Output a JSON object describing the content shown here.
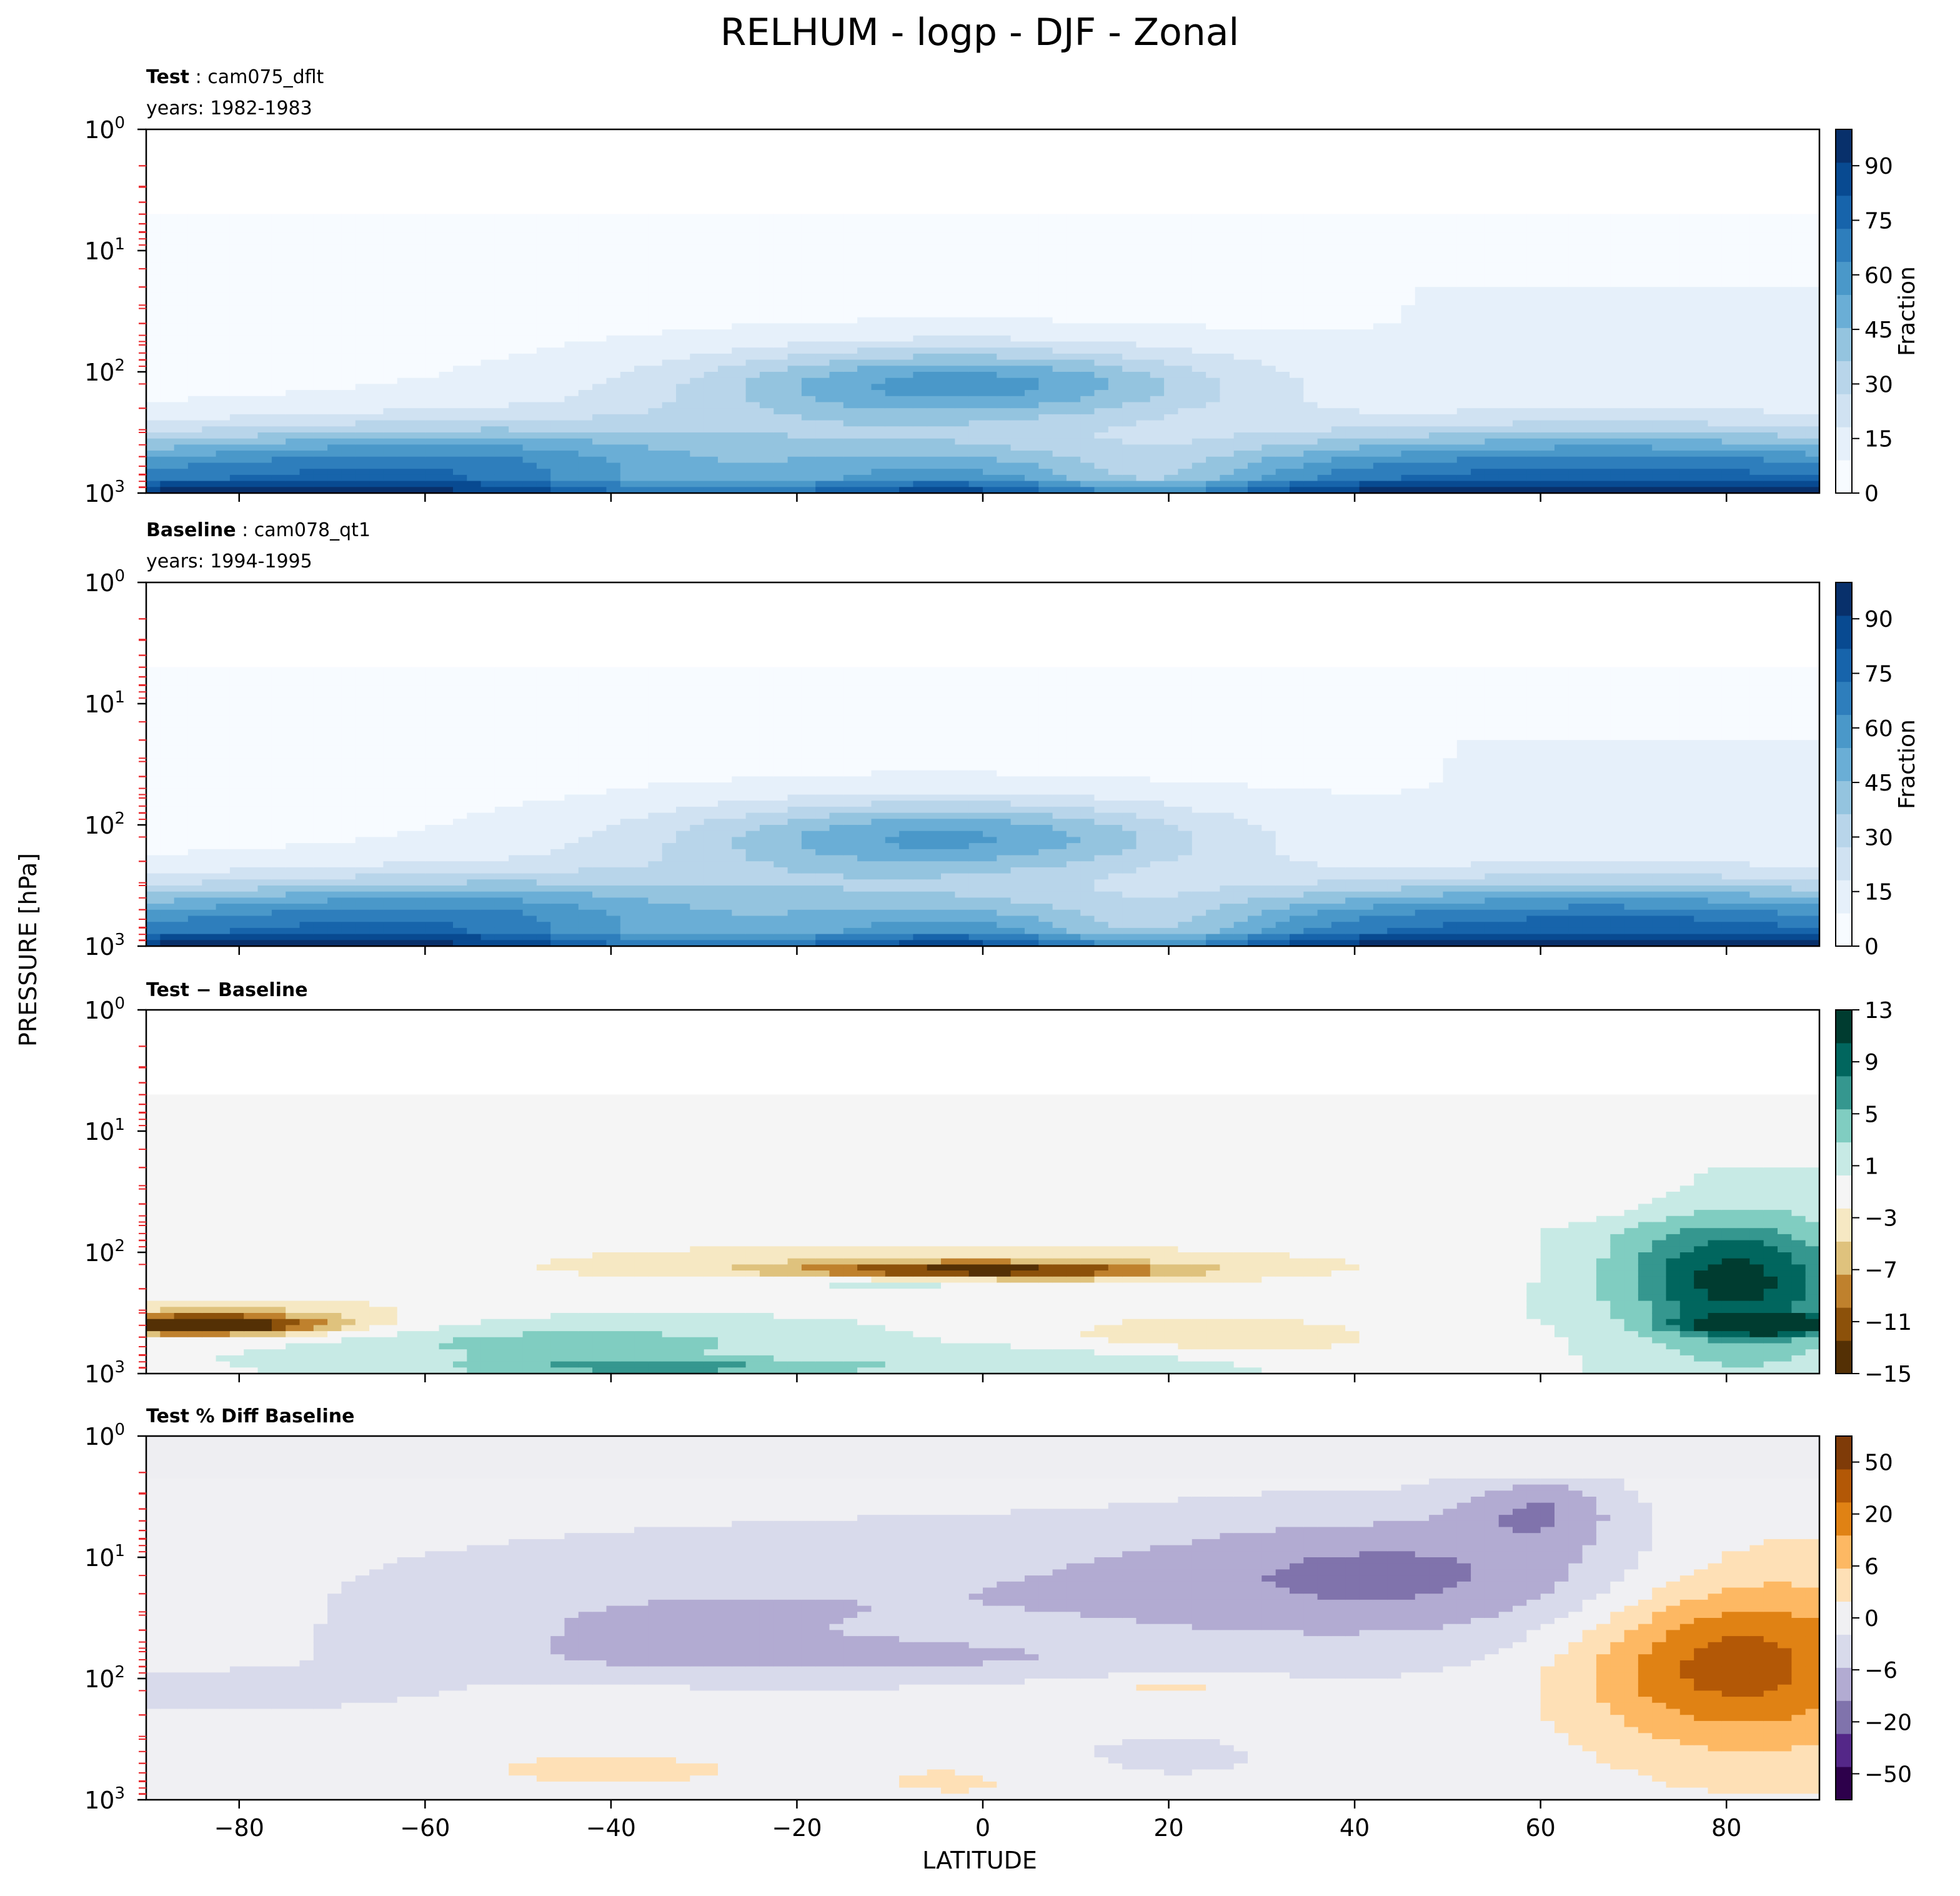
{
  "title": "RELHUM - logp - DJF - Zonal",
  "shared_ylabel": "PRESSURE [hPa]",
  "shared_xlabel": "LATITUDE",
  "chart_data": [
    {
      "type": "heatmap",
      "panel_label_bold": "Test",
      "panel_label_rest": ": cam075_dflt",
      "years": "years: 1982-1983",
      "colorbar_label": "Fraction",
      "colorbar_ticks": [
        "0",
        "15",
        "30",
        "45",
        "60",
        "75",
        "90"
      ],
      "colorbar_range": [
        0,
        100
      ],
      "colors": [
        "#f7fbff",
        "#e6f0fa",
        "#d0e2f2",
        "#b8d5ea",
        "#94c4df",
        "#6aaed6",
        "#4a98c9",
        "#2e7ebc",
        "#1764ab",
        "#084a91",
        "#08306b"
      ],
      "x_range": [
        -90,
        90
      ],
      "y_range_hpa": [
        1,
        1000
      ],
      "y_log": true,
      "y_ticklabels": [
        "10^0",
        "10^1",
        "10^2",
        "10^3"
      ],
      "x_ticklabels": [
        "−80",
        "−60",
        "−40",
        "−20",
        "0",
        "20",
        "40",
        "60",
        "80"
      ],
      "cutoff_hpa": 5,
      "field": "rh_test"
    },
    {
      "type": "heatmap",
      "panel_label_bold": "Baseline",
      "panel_label_rest": ": cam078_qt1",
      "years": "years: 1994-1995",
      "colorbar_label": "Fraction",
      "colorbar_ticks": [
        "0",
        "15",
        "30",
        "45",
        "60",
        "75",
        "90"
      ],
      "colorbar_range": [
        0,
        100
      ],
      "colors": [
        "#f7fbff",
        "#e6f0fa",
        "#d0e2f2",
        "#b8d5ea",
        "#94c4df",
        "#6aaed6",
        "#4a98c9",
        "#2e7ebc",
        "#1764ab",
        "#084a91",
        "#08306b"
      ],
      "x_range": [
        -90,
        90
      ],
      "y_range_hpa": [
        1,
        1000
      ],
      "y_log": true,
      "y_ticklabels": [
        "10^0",
        "10^1",
        "10^2",
        "10^3"
      ],
      "x_ticklabels": [
        "−80",
        "−60",
        "−40",
        "−20",
        "0",
        "20",
        "40",
        "60",
        "80"
      ],
      "cutoff_hpa": 5,
      "field": "rh_base"
    },
    {
      "type": "heatmap",
      "panel_label_bold": "Test − Baseline",
      "panel_label_rest": "",
      "years": "",
      "colorbar_label": "",
      "colorbar_ticks": [
        "−15",
        "−11",
        "−7",
        "−3",
        "1",
        "5",
        "9",
        "13"
      ],
      "colorbar_range": [
        -15,
        13
      ],
      "colors": [
        "#543005",
        "#8c510a",
        "#bf812d",
        "#dfc27d",
        "#f6e8c3",
        "#f5f5f5",
        "#c7eae5",
        "#80cdc1",
        "#35978f",
        "#01665e",
        "#003c30"
      ],
      "x_range": [
        -90,
        90
      ],
      "y_range_hpa": [
        1,
        1000
      ],
      "y_log": true,
      "y_ticklabels": [
        "10^0",
        "10^1",
        "10^2",
        "10^3"
      ],
      "x_ticklabels": [
        "−80",
        "−60",
        "−40",
        "−20",
        "0",
        "20",
        "40",
        "60",
        "80"
      ],
      "cutoff_hpa": 5,
      "field": "diff"
    },
    {
      "type": "heatmap",
      "panel_label_bold": "Test % Diff Baseline",
      "panel_label_rest": "",
      "years": "",
      "colorbar_label": "",
      "colorbar_ticks": [
        "−50",
        "−20",
        "−6",
        "0",
        "6",
        "20",
        "50"
      ],
      "colorbar_range": [
        -70,
        70
      ],
      "colors": [
        "#2d004b",
        "#542788",
        "#8073ac",
        "#b2abd2",
        "#d8daeb",
        "#f0f0f3",
        "#fee0b6",
        "#fdb863",
        "#e08214",
        "#b35806",
        "#7f3b08"
      ],
      "x_range": [
        -90,
        90
      ],
      "y_range_hpa": [
        1,
        1000
      ],
      "y_log": true,
      "y_ticklabels": [
        "10^0",
        "10^1",
        "10^2",
        "10^3"
      ],
      "x_ticklabels": [
        "−80",
        "−60",
        "−40",
        "−20",
        "0",
        "20",
        "40",
        "60",
        "80"
      ],
      "cutoff_hpa": 1,
      "field": "pct"
    }
  ]
}
